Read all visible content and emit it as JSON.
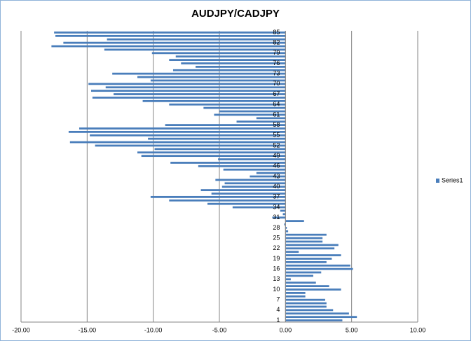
{
  "chart_data": {
    "type": "barh",
    "title": "AUDJPY/CADJPY",
    "categories": [
      "1",
      null,
      null,
      "4",
      null,
      null,
      "7",
      null,
      null,
      "10",
      null,
      null,
      "13",
      null,
      null,
      "16",
      null,
      null,
      "19",
      null,
      null,
      "22",
      null,
      null,
      "25",
      null,
      null,
      "28",
      null,
      null,
      "31",
      null,
      null,
      "34",
      null,
      null,
      "37",
      null,
      null,
      "40",
      null,
      null,
      "43",
      null,
      null,
      "46",
      null,
      null,
      "49",
      null,
      null,
      "52",
      null,
      null,
      "55",
      null,
      null,
      "58",
      null,
      null,
      "61",
      null,
      null,
      "64",
      null,
      null,
      "67",
      null,
      null,
      "70",
      null,
      null,
      "73",
      null,
      null,
      "76",
      null,
      null,
      "79",
      null,
      null,
      "82",
      null,
      null,
      "85"
    ],
    "series": [
      {
        "name": "Series1",
        "color": "#4a7ebb",
        "values": [
          4.3,
          5.4,
          4.8,
          3.6,
          3.1,
          3.1,
          3.0,
          1.5,
          1.5,
          4.2,
          3.3,
          2.3,
          0.4,
          2.1,
          2.7,
          5.1,
          4.9,
          3.1,
          3.5,
          4.2,
          1.0,
          3.7,
          4.0,
          2.8,
          2.8,
          3.1,
          0.2,
          0.1,
          -0.1,
          1.4,
          -1.0,
          -0.2,
          -0.4,
          -4.0,
          -5.9,
          -8.8,
          -10.2,
          -5.6,
          -6.4,
          -4.8,
          -4.6,
          -5.3,
          -2.7,
          -2.2,
          -4.7,
          -6.6,
          -8.7,
          -5.1,
          -10.9,
          -11.2,
          -9.9,
          -14.4,
          -16.3,
          -10.4,
          -14.8,
          -16.4,
          -15.6,
          -9.1,
          -3.7,
          -2.2,
          -5.4,
          -5.0,
          -6.2,
          -8.8,
          -10.8,
          -14.6,
          -13.0,
          -14.7,
          -13.6,
          -14.9,
          -10.2,
          -11.2,
          -13.1,
          -8.5,
          -6.8,
          -7.9,
          -8.8,
          -8.3,
          -10.1,
          -13.7,
          -17.7,
          -16.8,
          -13.5,
          -17.4,
          -17.5
        ]
      }
    ],
    "xlim": [
      -20,
      10
    ],
    "xticks": [
      {
        "value": -20,
        "label": "-20.00"
      },
      {
        "value": -15,
        "label": "-15.00"
      },
      {
        "value": -10,
        "label": "-10.00"
      },
      {
        "value": -5,
        "label": "-5.00"
      },
      {
        "value": 0,
        "label": "0.00"
      },
      {
        "value": 5,
        "label": "5.00"
      },
      {
        "value": 10,
        "label": "10.00"
      }
    ],
    "grid": true,
    "legend": "right"
  }
}
